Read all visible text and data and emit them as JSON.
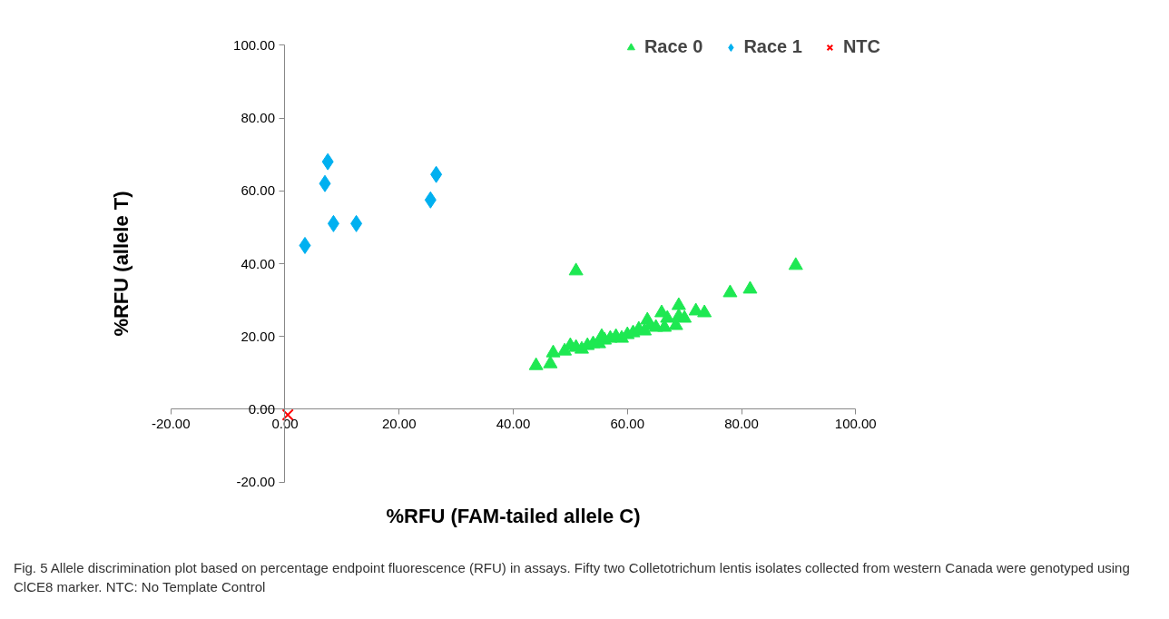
{
  "chart_data": {
    "type": "scatter",
    "xlabel": "%RFU (FAM-tailed allele C)",
    "ylabel": "%RFU (allele T)",
    "xlim": [
      -20,
      100
    ],
    "ylim": [
      -20,
      100
    ],
    "xticks": [
      {
        "value": -20,
        "label": "-20.00"
      },
      {
        "value": 0,
        "label": "0.00"
      },
      {
        "value": 20,
        "label": "20.00"
      },
      {
        "value": 40,
        "label": "40.00"
      },
      {
        "value": 60,
        "label": "60.00"
      },
      {
        "value": 80,
        "label": "80.00"
      },
      {
        "value": 100,
        "label": "100.00"
      }
    ],
    "yticks": [
      {
        "value": -20,
        "label": "-20.00"
      },
      {
        "value": 0,
        "label": "0.00"
      },
      {
        "value": 20,
        "label": "20.00"
      },
      {
        "value": 40,
        "label": "40.00"
      },
      {
        "value": 60,
        "label": "60.00"
      },
      {
        "value": 80,
        "label": "80.00"
      },
      {
        "value": 100,
        "label": "100.00"
      }
    ],
    "grid": false,
    "legend": "top right",
    "annotations": [
      "Fig. 5 Allele discrimination plot based on percentage endpoint fluorescence (RFU) in assays. Fifty two Colletotrichum lentis isolates collected from western Canada were genotyped using ClCE8 marker. NTC: No Template Control"
    ],
    "series": [
      {
        "name": "Race 0",
        "color": "#1ee852",
        "marker": "triangle",
        "x": [
          44,
          46.5,
          47,
          49,
          50,
          51,
          51,
          52,
          53,
          54,
          55,
          55.5,
          56,
          57,
          58,
          59,
          60,
          61,
          62,
          62.5,
          63,
          63.5,
          64,
          65,
          66,
          66.5,
          67,
          68,
          68.5,
          69,
          69,
          70,
          72,
          73.5,
          78,
          81.5,
          89.5
        ],
        "values": [
          12,
          12.5,
          15.5,
          16,
          17.5,
          38,
          17,
          16.5,
          17.5,
          18,
          18,
          20,
          19,
          19.5,
          20,
          19.5,
          20.5,
          21,
          22,
          null,
          21.5,
          24.5,
          23,
          22.5,
          26.5,
          22.5,
          25,
          null,
          23,
          28.5,
          25.5,
          25,
          27,
          26.5,
          32,
          33,
          39.5
        ]
      },
      {
        "name": "Race 1",
        "color": "#00b0f0",
        "marker": "diamond",
        "x": [
          3.5,
          7,
          7.5,
          8.5,
          12.5,
          25.5,
          26.5
        ],
        "values": [
          45,
          62,
          68,
          51,
          51,
          57.5,
          64.5
        ]
      },
      {
        "name": "NTC",
        "color": "#ff0000",
        "marker": "cross",
        "x": [
          0.5
        ],
        "values": [
          -1.5
        ]
      }
    ]
  }
}
